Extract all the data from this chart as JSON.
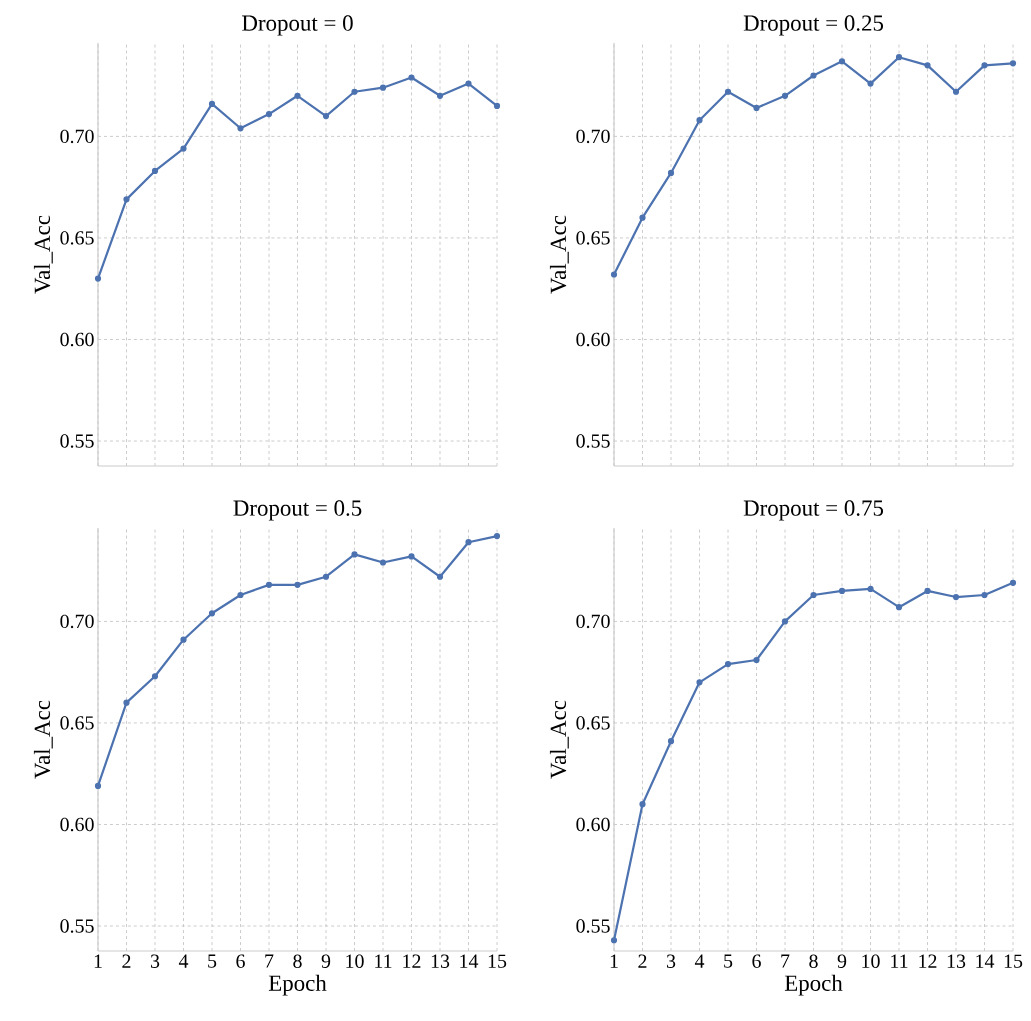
{
  "chart_data": [
    {
      "type": "line",
      "title": "Dropout = 0",
      "ylabel": "Val_Acc",
      "x": [
        1,
        2,
        3,
        4,
        5,
        6,
        7,
        8,
        9,
        10,
        11,
        12,
        13,
        14,
        15
      ],
      "color": "#4c72b0",
      "marker": "circle",
      "grid": true,
      "tick_labels": "y",
      "values": [
        0.63,
        0.669,
        0.683,
        0.694,
        0.716,
        0.704,
        0.711,
        0.72,
        0.71,
        0.722,
        0.724,
        0.729,
        0.72,
        0.726,
        0.715
      ],
      "xlim": [
        1,
        15
      ],
      "ylim": [
        0.5377,
        0.746
      ],
      "xticks": [
        1,
        2,
        3,
        4,
        5,
        6,
        7,
        8,
        9,
        10,
        11,
        12,
        13,
        14,
        15
      ],
      "yticks": [
        {
          "value": 0.55,
          "label": "0.55"
        },
        {
          "value": 0.6,
          "label": "0.60"
        },
        {
          "value": 0.65,
          "label": "0.65"
        },
        {
          "value": 0.7,
          "label": "0.70"
        }
      ]
    },
    {
      "type": "line",
      "title": "Dropout = 0.25",
      "ylabel": "Val_Acc",
      "x": [
        1,
        2,
        3,
        4,
        5,
        6,
        7,
        8,
        9,
        10,
        11,
        12,
        13,
        14,
        15
      ],
      "color": "#4c72b0",
      "marker": "circle",
      "grid": true,
      "tick_labels": "y",
      "values": [
        0.632,
        0.66,
        0.682,
        0.708,
        0.722,
        0.714,
        0.72,
        0.73,
        0.737,
        0.726,
        0.739,
        0.735,
        0.722,
        0.735,
        0.736
      ],
      "xlim": [
        1,
        15
      ],
      "ylim": [
        0.5377,
        0.746
      ],
      "xticks": [
        1,
        2,
        3,
        4,
        5,
        6,
        7,
        8,
        9,
        10,
        11,
        12,
        13,
        14,
        15
      ],
      "yticks": [
        {
          "value": 0.55,
          "label": "0.55"
        },
        {
          "value": 0.6,
          "label": "0.60"
        },
        {
          "value": 0.65,
          "label": "0.65"
        },
        {
          "value": 0.7,
          "label": "0.70"
        }
      ]
    },
    {
      "type": "line",
      "title": "Dropout = 0.5",
      "xlabel": "Epoch",
      "ylabel": "Val_Acc",
      "x": [
        1,
        2,
        3,
        4,
        5,
        6,
        7,
        8,
        9,
        10,
        11,
        12,
        13,
        14,
        15
      ],
      "color": "#4c72b0",
      "marker": "circle",
      "grid": true,
      "values": [
        0.619,
        0.66,
        0.673,
        0.691,
        0.704,
        0.713,
        0.718,
        0.718,
        0.722,
        0.733,
        0.729,
        0.732,
        0.722,
        0.739,
        0.742
      ],
      "xlim": [
        1,
        15
      ],
      "ylim": [
        0.5377,
        0.746
      ],
      "xticks": [
        1,
        2,
        3,
        4,
        5,
        6,
        7,
        8,
        9,
        10,
        11,
        12,
        13,
        14,
        15
      ],
      "yticks": [
        {
          "value": 0.55,
          "label": "0.55"
        },
        {
          "value": 0.6,
          "label": "0.60"
        },
        {
          "value": 0.65,
          "label": "0.65"
        },
        {
          "value": 0.7,
          "label": "0.70"
        }
      ]
    },
    {
      "type": "line",
      "title": "Dropout = 0.75",
      "xlabel": "Epoch",
      "ylabel": "Val_Acc",
      "x": [
        1,
        2,
        3,
        4,
        5,
        6,
        7,
        8,
        9,
        10,
        11,
        12,
        13,
        14,
        15
      ],
      "color": "#4c72b0",
      "marker": "circle",
      "grid": true,
      "values": [
        0.543,
        0.61,
        0.641,
        0.67,
        0.679,
        0.681,
        0.7,
        0.713,
        0.715,
        0.716,
        0.707,
        0.715,
        0.712,
        0.713,
        0.719
      ],
      "xlim": [
        1,
        15
      ],
      "ylim": [
        0.5377,
        0.746
      ],
      "xticks": [
        1,
        2,
        3,
        4,
        5,
        6,
        7,
        8,
        9,
        10,
        11,
        12,
        13,
        14,
        15
      ],
      "yticks": [
        {
          "value": 0.55,
          "label": "0.55"
        },
        {
          "value": 0.6,
          "label": "0.60"
        },
        {
          "value": 0.65,
          "label": "0.65"
        },
        {
          "value": 0.7,
          "label": "0.70"
        }
      ]
    }
  ]
}
